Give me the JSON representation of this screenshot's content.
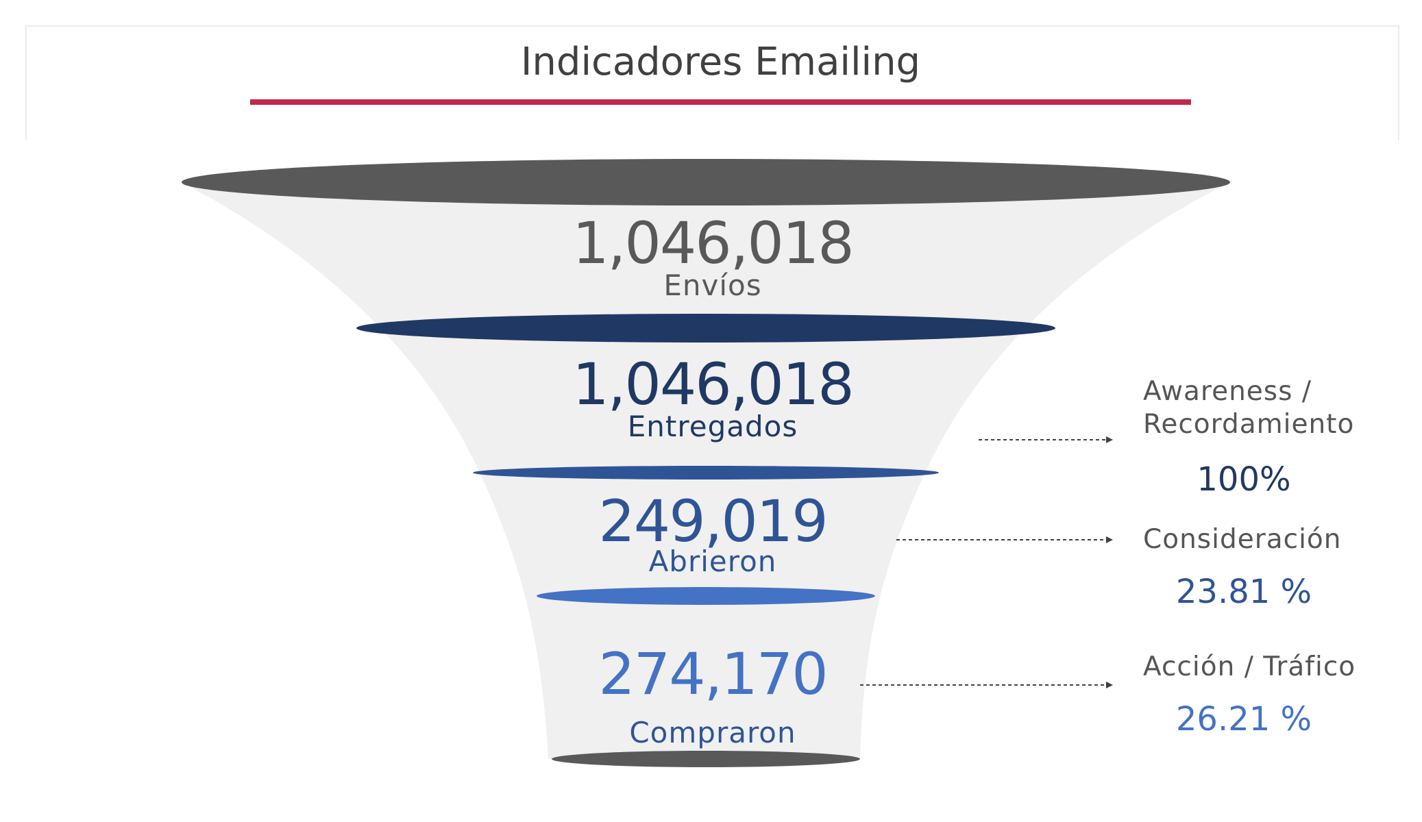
{
  "title": "Indicadores Emailing",
  "colors": {
    "title_underline": "#c0294b",
    "funnel_body": "#f0f0f0",
    "stage_1": "#595959",
    "stage_2": "#203864",
    "stage_3": "#2f5496",
    "stage_4": "#4472c4",
    "funnel_base": "#595959"
  },
  "stages": [
    {
      "value": "1,046,018",
      "label": "Envíos"
    },
    {
      "value": "1,046,018",
      "label": "Entregados"
    },
    {
      "value": "249,019",
      "label": "Abrieron"
    },
    {
      "value": "274,170",
      "label": "Compraron"
    }
  ],
  "metrics": [
    {
      "label": "Awareness /\nRecordamiento",
      "value": "100%"
    },
    {
      "label": "Consideración",
      "value": "23.81 %"
    },
    {
      "label": "Acción / Tráfico",
      "value": "26.21 %"
    }
  ]
}
